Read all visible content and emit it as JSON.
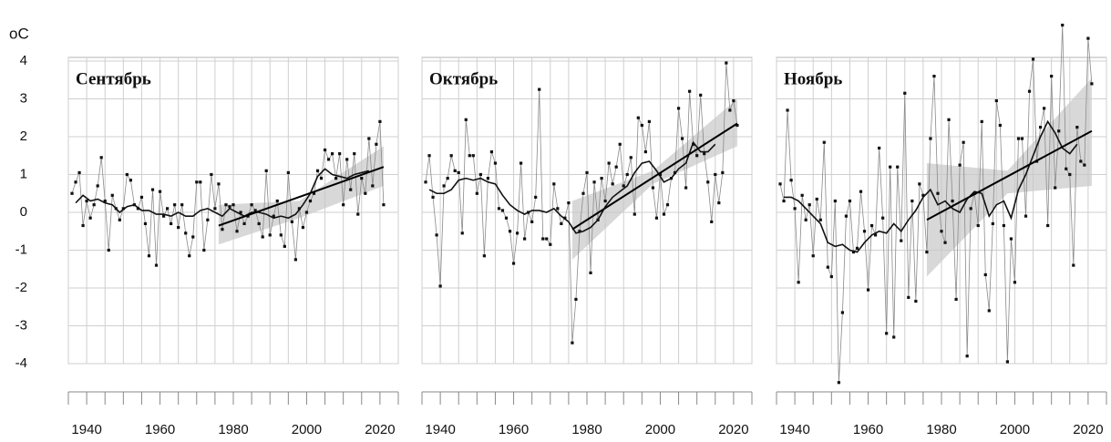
{
  "chart_data": [
    {
      "type": "line",
      "title": "Сентябрь",
      "ylabel": "oC",
      "show_ytick_labels": true,
      "xlim": [
        1935,
        2025
      ],
      "ylim": [
        -4,
        4
      ],
      "yticks": [
        -4,
        -3,
        -2,
        -1,
        0,
        1,
        2,
        3,
        4
      ],
      "xticks": [
        1940,
        1960,
        1980,
        2000,
        2020
      ],
      "xgrid": [
        1935,
        1940,
        1945,
        1950,
        1955,
        1960,
        1965,
        1970,
        1975,
        1980,
        1985,
        1990,
        1995,
        2000,
        2005,
        2010,
        2015,
        2020,
        2025
      ],
      "series": [
        {
          "color": "#8a8a8a",
          "markers": true,
          "width": 0.8,
          "x": [
            1936,
            1937,
            1938,
            1939,
            1940,
            1941,
            1942,
            1943,
            1944,
            1945,
            1946,
            1947,
            1948,
            1949,
            1950,
            1951,
            1952,
            1953,
            1954,
            1955,
            1956,
            1957,
            1958,
            1959,
            1960,
            1961,
            1962,
            1963,
            1964,
            1965,
            1966,
            1967,
            1968,
            1969,
            1970,
            1971,
            1972,
            1973,
            1974,
            1975,
            1976,
            1977,
            1978,
            1979,
            1980,
            1981,
            1982,
            1983,
            1984,
            1985,
            1986,
            1987,
            1988,
            1989,
            1990,
            1991,
            1992,
            1993,
            1994,
            1995,
            1996,
            1997,
            1998,
            1999,
            2000,
            2001,
            2002,
            2003,
            2004,
            2005,
            2006,
            2007,
            2008,
            2009,
            2010,
            2011,
            2012,
            2013,
            2014,
            2015,
            2016,
            2017,
            2018,
            2019,
            2020,
            2021
          ],
          "values": [
            0.5,
            0.8,
            1.05,
            -0.35,
            0.3,
            -0.15,
            0.2,
            0.7,
            1.45,
            0.3,
            -1.0,
            0.45,
            0.1,
            -0.2,
            0.1,
            1.0,
            0.85,
            0.2,
            0.1,
            0.4,
            -0.3,
            -1.15,
            0.6,
            -1.4,
            0.55,
            -0.1,
            0.1,
            -0.3,
            0.2,
            -0.4,
            0.2,
            -0.55,
            -1.15,
            -0.65,
            0.8,
            0.8,
            -1.0,
            -0.2,
            1.0,
            0.1,
            0.75,
            -0.45,
            0.2,
            0.15,
            0.2,
            -0.5,
            0.0,
            -0.3,
            -0.1,
            0.2,
            0.05,
            -0.3,
            -0.65,
            1.1,
            -0.6,
            -0.1,
            0.3,
            -0.6,
            -0.9,
            1.05,
            -0.25,
            -1.25,
            0.1,
            -0.4,
            0.0,
            0.3,
            0.5,
            1.1,
            0.9,
            1.65,
            1.4,
            1.55,
            0.9,
            1.55,
            0.2,
            1.4,
            0.6,
            1.55,
            -0.05,
            0.9,
            0.5,
            1.95,
            0.7,
            1.8,
            2.4,
            0.2
          ]
        },
        {
          "color": "#111111",
          "markers": false,
          "width": 1.6,
          "x": [
            1937,
            1939,
            1941,
            1943,
            1945,
            1947,
            1949,
            1951,
            1953,
            1955,
            1957,
            1959,
            1961,
            1963,
            1965,
            1967,
            1969,
            1971,
            1973,
            1975,
            1977,
            1979,
            1981,
            1983,
            1985,
            1987,
            1989,
            1991,
            1993,
            1995,
            1997,
            1999,
            2001,
            2003,
            2005,
            2007,
            2009,
            2011,
            2013,
            2015,
            2017
          ],
          "values": [
            0.25,
            0.45,
            0.3,
            0.35,
            0.25,
            0.2,
            0.0,
            0.15,
            0.2,
            0.05,
            0.05,
            -0.05,
            -0.05,
            -0.1,
            0.0,
            -0.1,
            -0.1,
            0.05,
            0.1,
            0.0,
            -0.1,
            0.1,
            0.0,
            -0.1,
            0.0,
            0.0,
            -0.05,
            -0.15,
            -0.1,
            -0.15,
            -0.05,
            0.2,
            0.5,
            0.95,
            1.15,
            1.0,
            0.95,
            0.9,
            1.0,
            1.05,
            1.1
          ]
        },
        {
          "color": "#000000",
          "markers": false,
          "width": 2,
          "x": [
            1976,
            2021
          ],
          "values": [
            -0.35,
            1.2
          ]
        }
      ],
      "band": {
        "color": "#c8c8c8",
        "x": [
          1976,
          1998,
          2021
        ],
        "lower": [
          -0.85,
          -0.15,
          0.7
        ],
        "upper": [
          0.2,
          0.3,
          1.75
        ]
      }
    },
    {
      "type": "line",
      "title": "Октябрь",
      "show_ytick_labels": false,
      "xlim": [
        1935,
        2025
      ],
      "ylim": [
        -4,
        4
      ],
      "yticks": [
        -4,
        -3,
        -2,
        -1,
        0,
        1,
        2,
        3,
        4
      ],
      "xticks": [
        1940,
        1960,
        1980,
        2000,
        2020
      ],
      "xgrid": [
        1935,
        1940,
        1945,
        1950,
        1955,
        1960,
        1965,
        1970,
        1975,
        1980,
        1985,
        1990,
        1995,
        2000,
        2005,
        2010,
        2015,
        2020,
        2025
      ],
      "series": [
        {
          "color": "#8a8a8a",
          "markers": true,
          "width": 0.8,
          "x": [
            1936,
            1937,
            1938,
            1939,
            1940,
            1941,
            1942,
            1943,
            1944,
            1945,
            1946,
            1947,
            1948,
            1949,
            1950,
            1951,
            1952,
            1953,
            1954,
            1955,
            1956,
            1957,
            1958,
            1959,
            1960,
            1961,
            1962,
            1963,
            1964,
            1965,
            1966,
            1967,
            1968,
            1969,
            1970,
            1971,
            1972,
            1973,
            1974,
            1975,
            1976,
            1977,
            1978,
            1979,
            1980,
            1981,
            1982,
            1983,
            1984,
            1985,
            1986,
            1987,
            1988,
            1989,
            1990,
            1991,
            1992,
            1993,
            1994,
            1995,
            1996,
            1997,
            1998,
            1999,
            2000,
            2001,
            2002,
            2003,
            2004,
            2005,
            2006,
            2007,
            2008,
            2009,
            2010,
            2011,
            2012,
            2013,
            2014,
            2015,
            2016,
            2017,
            2018,
            2019,
            2020,
            2021
          ],
          "values": [
            0.8,
            1.5,
            0.4,
            -0.6,
            -1.95,
            0.7,
            0.9,
            1.5,
            1.1,
            1.05,
            -0.55,
            2.45,
            1.5,
            1.5,
            0.5,
            1.0,
            -1.15,
            0.9,
            1.6,
            1.3,
            0.1,
            0.05,
            -0.15,
            -0.5,
            -1.35,
            -0.55,
            1.3,
            -0.7,
            0.0,
            -0.25,
            0.4,
            3.25,
            -0.7,
            -0.7,
            -0.85,
            0.75,
            0.1,
            -0.3,
            -0.15,
            0.25,
            -3.45,
            -2.3,
            -0.5,
            0.5,
            1.05,
            -1.6,
            0.8,
            -0.2,
            0.9,
            0.3,
            1.3,
            0.75,
            1.2,
            1.8,
            0.7,
            1.0,
            1.45,
            -0.05,
            2.5,
            2.3,
            1.6,
            2.4,
            0.65,
            -0.15,
            1.0,
            -0.05,
            0.2,
            0.9,
            1.05,
            2.75,
            1.95,
            0.65,
            3.2,
            1.8,
            1.5,
            3.1,
            1.55,
            0.8,
            -0.25,
            1.0,
            0.25,
            1.05,
            3.95,
            2.7,
            2.95,
            2.3
          ]
        },
        {
          "color": "#111111",
          "markers": false,
          "width": 1.6,
          "x": [
            1937,
            1939,
            1941,
            1943,
            1945,
            1947,
            1949,
            1951,
            1953,
            1955,
            1957,
            1959,
            1961,
            1963,
            1965,
            1967,
            1969,
            1971,
            1973,
            1975,
            1977,
            1979,
            1981,
            1983,
            1985,
            1987,
            1989,
            1991,
            1993,
            1995,
            1997,
            1999,
            2001,
            2003,
            2005,
            2007,
            2009,
            2011,
            2013,
            2015
          ],
          "values": [
            0.6,
            0.5,
            0.5,
            0.6,
            0.85,
            0.9,
            0.85,
            0.9,
            0.8,
            0.75,
            0.45,
            0.2,
            0.05,
            -0.05,
            0.05,
            0.05,
            0.0,
            0.1,
            -0.1,
            -0.25,
            -0.55,
            -0.5,
            -0.4,
            -0.2,
            0.15,
            0.4,
            0.55,
            0.7,
            1.05,
            1.3,
            1.35,
            1.1,
            0.8,
            0.9,
            1.15,
            1.3,
            1.85,
            1.6,
            1.6,
            1.8
          ]
        },
        {
          "color": "#000000",
          "markers": false,
          "width": 2,
          "x": [
            1976,
            2021
          ],
          "values": [
            -0.45,
            2.35
          ]
        }
      ],
      "band": {
        "color": "#c8c8c8",
        "x": [
          1976,
          1998,
          2021
        ],
        "lower": [
          -1.25,
          0.75,
          1.75
        ],
        "upper": [
          0.3,
          1.1,
          3.0
        ]
      }
    },
    {
      "type": "line",
      "title": "Ноябрь",
      "show_ytick_labels": false,
      "xlim": [
        1935,
        2025
      ],
      "ylim": [
        -4,
        4
      ],
      "yticks": [
        -4,
        -3,
        -2,
        -1,
        0,
        1,
        2,
        3,
        4
      ],
      "xticks": [
        1940,
        1960,
        1980,
        2000,
        2020
      ],
      "xgrid": [
        1935,
        1940,
        1945,
        1950,
        1955,
        1960,
        1965,
        1970,
        1975,
        1980,
        1985,
        1990,
        1995,
        2000,
        2005,
        2010,
        2015,
        2020,
        2025
      ],
      "series": [
        {
          "color": "#8a8a8a",
          "markers": true,
          "width": 0.8,
          "x": [
            1936,
            1937,
            1938,
            1939,
            1940,
            1941,
            1942,
            1943,
            1944,
            1945,
            1946,
            1947,
            1948,
            1949,
            1950,
            1951,
            1952,
            1953,
            1954,
            1955,
            1956,
            1957,
            1958,
            1959,
            1960,
            1961,
            1962,
            1963,
            1964,
            1965,
            1966,
            1967,
            1968,
            1969,
            1970,
            1971,
            1972,
            1973,
            1974,
            1975,
            1976,
            1977,
            1978,
            1979,
            1980,
            1981,
            1982,
            1983,
            1984,
            1985,
            1986,
            1987,
            1988,
            1989,
            1990,
            1991,
            1992,
            1993,
            1994,
            1995,
            1996,
            1997,
            1998,
            1999,
            2000,
            2001,
            2002,
            2003,
            2004,
            2005,
            2006,
            2007,
            2008,
            2009,
            2010,
            2011,
            2012,
            2013,
            2014,
            2015,
            2016,
            2017,
            2018,
            2019,
            2020,
            2021
          ],
          "values": [
            0.75,
            0.3,
            2.7,
            0.85,
            0.1,
            -1.85,
            0.45,
            -0.2,
            0.2,
            -1.15,
            0.35,
            -0.2,
            1.85,
            -1.45,
            -1.7,
            0.3,
            -4.5,
            -2.65,
            -0.1,
            0.3,
            -1.05,
            -0.95,
            0.55,
            -0.5,
            -2.05,
            -0.35,
            -0.6,
            1.7,
            -0.15,
            -3.2,
            1.2,
            -3.3,
            1.2,
            -0.75,
            3.15,
            -2.25,
            0.3,
            -2.35,
            0.75,
            0.45,
            -1.05,
            1.95,
            3.6,
            0.5,
            -0.5,
            -0.8,
            2.45,
            0.3,
            -2.3,
            1.25,
            1.85,
            -3.8,
            0.1,
            0.5,
            -0.35,
            2.4,
            -1.65,
            -2.6,
            -0.3,
            2.95,
            2.3,
            -0.35,
            -3.95,
            -0.7,
            -1.85,
            1.95,
            1.95,
            -0.1,
            3.2,
            4.05,
            1.35,
            2.25,
            2.75,
            -0.35,
            3.6,
            0.65,
            2.15,
            4.95,
            1.15,
            1.0,
            -1.4,
            2.25,
            1.35,
            1.25,
            4.6,
            3.4
          ]
        },
        {
          "color": "#111111",
          "markers": false,
          "width": 1.6,
          "x": [
            1937,
            1939,
            1941,
            1943,
            1945,
            1947,
            1949,
            1951,
            1953,
            1955,
            1957,
            1959,
            1961,
            1963,
            1965,
            1967,
            1969,
            1971,
            1973,
            1975,
            1977,
            1979,
            1981,
            1983,
            1985,
            1987,
            1989,
            1991,
            1993,
            1995,
            1997,
            1999,
            2001,
            2003,
            2005,
            2007,
            2009,
            2011,
            2013,
            2015,
            2017
          ],
          "values": [
            0.4,
            0.4,
            0.3,
            0.1,
            -0.1,
            -0.3,
            -0.8,
            -0.9,
            -0.85,
            -1.0,
            -1.05,
            -0.8,
            -0.6,
            -0.5,
            -0.55,
            -0.3,
            -0.5,
            -0.2,
            0.05,
            0.4,
            0.6,
            0.2,
            0.3,
            0.1,
            0.0,
            0.35,
            0.55,
            0.5,
            -0.1,
            0.2,
            0.3,
            -0.15,
            0.6,
            1.0,
            1.5,
            2.0,
            2.4,
            2.1,
            1.7,
            1.55,
            1.8
          ]
        },
        {
          "color": "#000000",
          "markers": false,
          "width": 2,
          "x": [
            1976,
            2021
          ],
          "values": [
            -0.2,
            2.15
          ]
        }
      ],
      "band": {
        "color": "#c8c8c8",
        "x": [
          1976,
          1998,
          2021
        ],
        "lower": [
          -1.7,
          0.5,
          0.7
        ],
        "upper": [
          1.3,
          1.1,
          3.55
        ]
      }
    }
  ]
}
